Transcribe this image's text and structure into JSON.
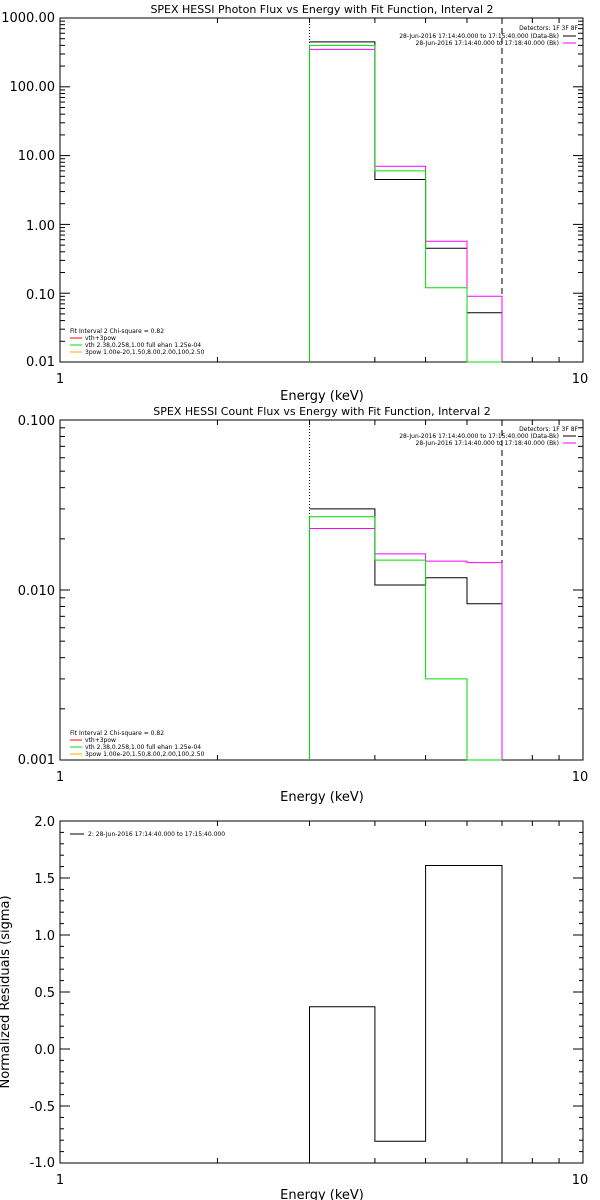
{
  "colors": {
    "axis": "#000000",
    "data": "#000000",
    "bk": "#ff00ff",
    "fit_total": "#ff0000",
    "fit_green": "#00dd00",
    "resid": "#000000"
  },
  "chart_data": [
    {
      "type": "line",
      "id": "photon",
      "title": "SPEX HESSI Photon Flux vs Energy with Fit Function, Interval 2",
      "xlabel": "Energy (keV)",
      "ylabel": "",
      "xscale": "log",
      "yscale": "log",
      "xlim": [
        1,
        10
      ],
      "ylim": [
        0.01,
        1000
      ],
      "x_ticks": [
        "1",
        "10"
      ],
      "y_ticks": [
        "1000.00",
        "100.00",
        "10.00",
        "1.00",
        "0.10",
        "0.01"
      ],
      "x_edges": [
        3,
        4,
        5,
        6,
        7
      ],
      "series": [
        {
          "key": "data",
          "values": [
            450,
            4.5,
            0.45,
            0.052
          ]
        },
        {
          "key": "bk",
          "values": [
            350,
            7.0,
            0.57,
            0.09
          ]
        },
        {
          "key": "fit_green",
          "values": [
            400,
            6.0,
            0.12,
            0.01
          ],
          "drop_to_axis": true
        }
      ],
      "vlines": [
        {
          "x": 3,
          "style": "dotted"
        },
        {
          "x": 7,
          "style": "dashed"
        }
      ],
      "legend_header": "Detectors: 1F 3F 8F",
      "legend_top": [
        {
          "label": "28-Jun-2016 17:14:40.000 to 17:15:40.000 (Data-Bk)",
          "key": "data"
        },
        {
          "label": "28-Jun-2016 17:14:40.000 to 17:18:40.000 (Bk)",
          "key": "bk"
        }
      ],
      "legend_fit_header": "Fit Interval 2   Chi-square = 0.82",
      "legend_fit": [
        {
          "label": "vth+3pow",
          "key": "fit_total"
        },
        {
          "label": "vth 2.38,0.258,1.00  full ehan 1.25e-04",
          "key": "fit_green"
        },
        {
          "label": "3pow 1.00e-20,1.50,8.00,2.00,100,2.50",
          "key": "fit_orange"
        }
      ]
    },
    {
      "type": "line",
      "id": "count",
      "title": "SPEX HESSI Count Flux vs Energy with Fit Function, Interval 2",
      "xlabel": "Energy (keV)",
      "ylabel": "",
      "xscale": "log",
      "yscale": "log",
      "xlim": [
        1,
        10
      ],
      "ylim": [
        0.001,
        0.1
      ],
      "x_ticks": [
        "1",
        "10"
      ],
      "y_ticks": [
        "0.100",
        "0.010",
        "0.001"
      ],
      "x_edges": [
        3,
        4,
        5,
        6,
        7
      ],
      "series": [
        {
          "key": "data",
          "values": [
            0.03,
            0.0107,
            0.0118,
            0.0083
          ]
        },
        {
          "key": "bk",
          "values": [
            0.023,
            0.0163,
            0.0148,
            0.0145
          ]
        },
        {
          "key": "fit_green",
          "values": [
            0.027,
            0.015,
            0.003,
            0.001
          ],
          "drop_to_axis": true
        }
      ],
      "vlines": [
        {
          "x": 3,
          "style": "dotted"
        },
        {
          "x": 7,
          "style": "dashed"
        }
      ],
      "legend_header": "Detectors: 1F 3F 8F",
      "legend_top": [
        {
          "label": "28-Jun-2016 17:14:40.000 to 17:15:40.000 (Data-Bk)",
          "key": "data"
        },
        {
          "label": "28-Jun-2016 17:14:40.000 to 17:18:40.000 (Bk)",
          "key": "bk"
        }
      ],
      "legend_fit_header": "Fit Interval 2   Chi-square = 0.82",
      "legend_fit": [
        {
          "label": "vth+3pow",
          "key": "fit_total"
        },
        {
          "label": "vth 2.38,0.258,1.00  full ehan 1.25e-04",
          "key": "fit_green"
        },
        {
          "label": "3pow 1.00e-20,1.50,8.00,2.00,100,2.50",
          "key": "fit_orange"
        }
      ]
    },
    {
      "type": "line",
      "id": "resid",
      "title": "",
      "xlabel": "Energy (keV)",
      "ylabel": "Normalized Residuals (sigma)",
      "xscale": "log",
      "yscale": "linear",
      "xlim": [
        1,
        10
      ],
      "ylim": [
        -1.0,
        2.0
      ],
      "x_ticks": [
        "1",
        "10"
      ],
      "y_ticks": [
        "2.0",
        "1.5",
        "1.0",
        "0.5",
        "0.0",
        "-0.5",
        "-1.0"
      ],
      "x_edges": [
        3,
        4,
        5,
        7
      ],
      "series": [
        {
          "key": "resid",
          "values": [
            0.37,
            -0.81,
            1.61
          ]
        }
      ],
      "legend_top": [
        {
          "label": "2: 28-Jun-2016 17:14:40.000 to 17:15:40.000",
          "key": "resid"
        }
      ]
    }
  ]
}
